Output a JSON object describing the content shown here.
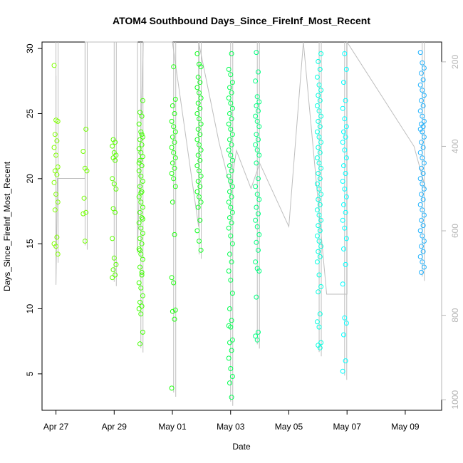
{
  "chart_data": {
    "type": "scatter",
    "title": "ATOM4 Southbound Days_Since_FireInf_Most_Recent",
    "xlabel": "Date",
    "ylabel": "Days_Since_FireInf_Most_Recent",
    "x_ticks": [
      "Apr 27",
      "Apr 29",
      "May 01",
      "May 03",
      "May 05",
      "May 07",
      "May 09"
    ],
    "xlim": [
      "2024-04-26T12:30",
      "2024-05-10T06:00"
    ],
    "ylim": [
      2.2,
      30.5
    ],
    "y_ticks": [
      5,
      10,
      15,
      20,
      25,
      30
    ],
    "y2_ticks": [
      200,
      400,
      600,
      800,
      1000
    ],
    "y2lim": [
      1025,
      153
    ],
    "grid": false,
    "legend": "none",
    "colors": {
      "background": "#ffffff",
      "axis": "#000000",
      "secondary_axis": "#b4b4b4",
      "trace_line": "#bebebe"
    },
    "trace_path_y2": [
      [
        0.0,
        233
      ],
      [
        0.0,
        728
      ],
      [
        0.05,
        476
      ],
      [
        1.0,
        476
      ],
      [
        1.0,
        153
      ],
      [
        2.8,
        153
      ],
      [
        2.8,
        653
      ],
      [
        3.0,
        153
      ],
      [
        4.0,
        153
      ],
      [
        4.9,
        590
      ],
      [
        4.9,
        153
      ],
      [
        5.6,
        390
      ],
      [
        6.0,
        500
      ],
      [
        6.2,
        410
      ],
      [
        6.7,
        500
      ],
      [
        7.0,
        440
      ],
      [
        8.0,
        590
      ],
      [
        8.5,
        153
      ],
      [
        9.3,
        750
      ],
      [
        10.0,
        750
      ],
      [
        10.0,
        153
      ],
      [
        12.3,
        400
      ],
      [
        12.7,
        500
      ]
    ],
    "series": [
      {
        "date": "2024-04-27T00:00",
        "color": "#7fff00",
        "y": [
          28.7,
          24.5,
          24.4,
          23.4,
          22.9,
          22.4,
          21.8,
          20.9,
          20.6,
          20.3,
          19.7,
          18.8,
          18.2,
          17.6,
          15.5,
          15.0,
          14.8,
          14.2
        ]
      },
      {
        "date": "2024-04-28T00:00",
        "color": "#72ff00",
        "y": [
          23.8,
          22.1,
          20.8,
          20.6,
          18.5,
          17.4,
          17.3,
          15.2
        ]
      },
      {
        "date": "2024-04-29T00:00",
        "color": "#5aff00",
        "y": [
          23.0,
          22.8,
          22.5,
          22.0,
          21.8,
          21.6,
          21.4,
          20.0,
          19.6,
          19.2,
          17.7,
          17.4,
          15.4,
          13.9,
          13.4,
          13.0,
          12.6,
          12.4
        ]
      },
      {
        "date": "2024-04-29T22:00",
        "color": "#40ff00",
        "y": [
          26.0,
          25.1,
          24.8,
          24.2,
          23.6,
          23.2,
          23.0,
          22.6,
          22.3,
          22.0,
          21.7,
          21.4,
          21.0,
          20.6,
          20.2,
          19.8,
          19.4,
          19.0,
          18.6,
          18.2,
          17.8,
          17.4,
          17.0,
          16.6,
          16.2,
          15.8,
          15.4,
          15.0,
          14.6,
          14.2,
          13.8,
          13.2,
          12.6,
          12.0,
          11.6,
          11.0,
          10.5,
          10.2,
          10.0,
          9.6,
          8.2,
          7.3,
          23.4,
          21.2,
          18.9,
          16.9,
          14.5,
          12.8
        ]
      },
      {
        "date": "2024-05-01T01:00",
        "color": "#20ff10",
        "y": [
          28.6,
          26.1,
          25.6,
          25.0,
          24.4,
          24.0,
          23.6,
          23.2,
          22.8,
          22.4,
          22.0,
          21.6,
          21.2,
          20.8,
          20.4,
          20.0,
          19.4,
          18.2,
          15.7,
          12.4,
          12.0,
          9.9,
          9.8,
          9.2,
          3.9
        ]
      },
      {
        "date": "2024-05-01T22:00",
        "color": "#10ff20",
        "y": [
          29.6,
          28.8,
          28.6,
          27.8,
          27.4,
          27.0,
          26.6,
          26.2,
          25.8,
          25.4,
          25.0,
          24.6,
          24.2,
          23.8,
          23.4,
          23.0,
          22.6,
          22.2,
          21.8,
          21.4,
          21.0,
          20.6,
          20.2,
          19.8,
          19.4,
          19.0,
          18.6,
          18.2,
          17.8,
          16.8,
          16.0,
          15.2,
          14.5
        ]
      },
      {
        "date": "2024-05-03T00:00",
        "color": "#00ff50",
        "y": [
          29.6,
          28.4,
          28.0,
          27.4,
          27.0,
          26.6,
          26.2,
          25.8,
          25.4,
          25.0,
          24.6,
          24.2,
          23.8,
          23.4,
          23.0,
          22.6,
          22.2,
          21.8,
          21.4,
          21.0,
          20.6,
          20.2,
          19.8,
          19.4,
          19.0,
          18.6,
          18.2,
          17.8,
          17.4,
          17.0,
          16.6,
          16.2,
          15.6,
          15.0,
          14.2,
          13.6,
          12.9,
          12.2,
          11.2,
          10.0,
          9.1,
          8.7,
          8.6,
          7.6,
          7.4,
          6.8,
          6.2,
          5.4,
          4.8,
          4.3,
          3.2
        ]
      },
      {
        "date": "2024-05-03T22:00",
        "color": "#00ff80",
        "y": [
          29.7,
          28.2,
          27.5,
          26.3,
          25.9,
          25.6,
          25.2,
          24.8,
          24.4,
          24.0,
          23.4,
          23.0,
          22.6,
          22.2,
          21.8,
          21.2,
          20.0,
          19.4,
          18.8,
          18.4,
          17.8,
          17.3,
          16.8,
          16.3,
          15.7,
          15.1,
          14.5,
          13.6,
          13.1,
          12.9,
          10.9,
          8.2,
          7.9,
          7.6
        ]
      },
      {
        "date": "2024-05-06T01:00",
        "color": "#00ffe0",
        "y": [
          29.6,
          29.0,
          28.4,
          27.8,
          27.2,
          26.8,
          26.4,
          26.0,
          25.6,
          25.2,
          24.8,
          24.4,
          24.0,
          23.6,
          23.2,
          22.8,
          22.4,
          22.0,
          21.6,
          21.2,
          20.8,
          20.4,
          20.0,
          19.6,
          19.2,
          18.8,
          18.4,
          18.0,
          17.6,
          17.2,
          16.8,
          16.4,
          16.0,
          15.6,
          15.2,
          14.8,
          14.4,
          14.0,
          13.6,
          12.6,
          11.7,
          11.3,
          9.6,
          9.0,
          8.6,
          7.4,
          7.2,
          7.0
        ]
      },
      {
        "date": "2024-05-06T22:00",
        "color": "#00ffff",
        "y": [
          29.6,
          28.4,
          27.4,
          26.0,
          25.4,
          24.6,
          24.0,
          23.6,
          23.2,
          22.8,
          22.2,
          21.6,
          21.0,
          20.4,
          19.8,
          19.2,
          18.6,
          18.0,
          17.4,
          16.8,
          16.2,
          15.4,
          14.6,
          13.4,
          11.9,
          9.3,
          8.9,
          8.0,
          6.0,
          5.2
        ]
      },
      {
        "date": "2024-05-09T14:00",
        "color": "#1eb2ff",
        "y": [
          29.7,
          28.9,
          28.5,
          28.1,
          27.6,
          27.2,
          26.8,
          26.4,
          26.0,
          25.6,
          25.2,
          24.8,
          24.4,
          24.2,
          24.0,
          23.8,
          23.6,
          23.2,
          22.8,
          22.4,
          22.0,
          21.6,
          21.2,
          20.8,
          20.4,
          20.0,
          19.6,
          19.2,
          18.8,
          18.4,
          18.0,
          17.6,
          17.2,
          16.8,
          16.4,
          16.0,
          15.6,
          15.2,
          14.8,
          14.4,
          14.0,
          13.6,
          13.2,
          12.8
        ]
      }
    ]
  }
}
